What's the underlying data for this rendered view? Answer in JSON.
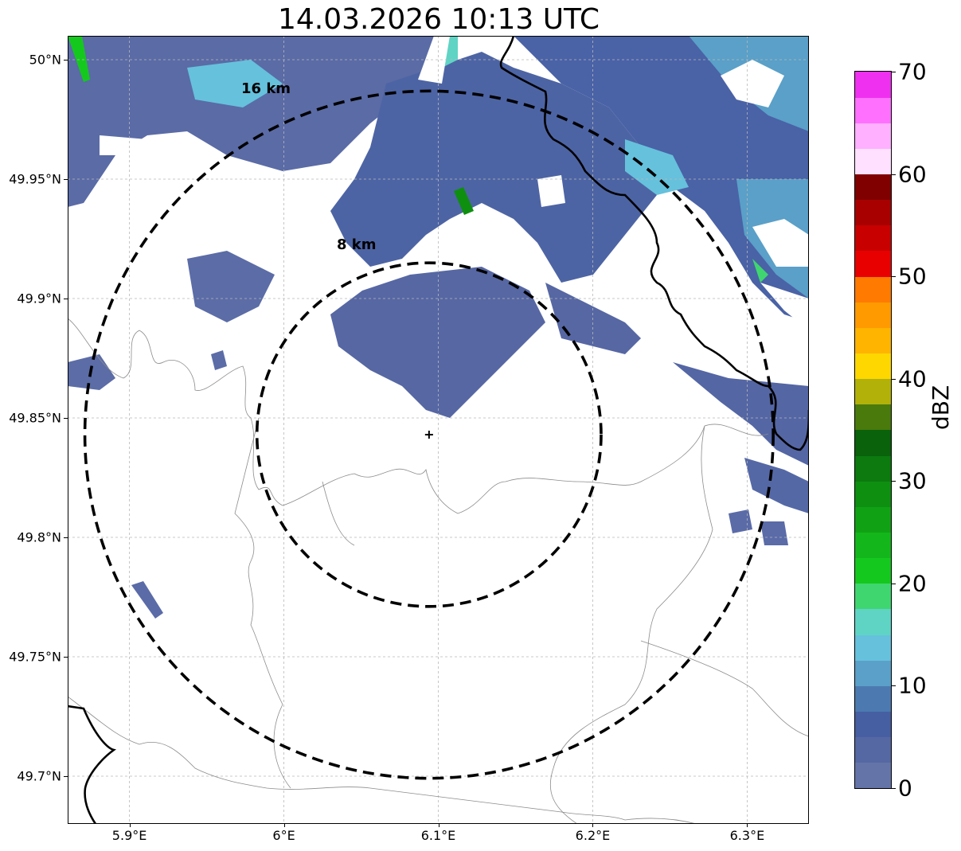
{
  "title": "14.03.2026 10:13 UTC",
  "map": {
    "lat_range": [
      49.68,
      50.01
    ],
    "lon_range": [
      5.86,
      6.34
    ],
    "radar_site": {
      "lat": 49.843,
      "lon": 6.094
    },
    "lat_ticks": [
      "50°N",
      "49.95°N",
      "49.9°N",
      "49.85°N",
      "49.8°N",
      "49.75°N",
      "49.7°N"
    ],
    "lat_tick_values": [
      50.0,
      49.95,
      49.9,
      49.85,
      49.8,
      49.75,
      49.7
    ],
    "lon_ticks": [
      "5.9°E",
      "6°E",
      "6.1°E",
      "6.2°E",
      "6.3°E"
    ],
    "lon_tick_values": [
      5.9,
      6.0,
      6.1,
      6.2,
      6.3
    ],
    "rings": [
      {
        "label": "8 km",
        "radius_km": 8
      },
      {
        "label": "16 km",
        "radius_km": 16
      }
    ]
  },
  "colorbar": {
    "label": "dBZ",
    "min": 0,
    "max": 70,
    "tick_labels": [
      "0",
      "10",
      "20",
      "30",
      "40",
      "50",
      "60",
      "70"
    ],
    "colors": [
      "#6574a8",
      "#5668a3",
      "#465ea2",
      "#4c7ab0",
      "#5aa0c8",
      "#66c1dc",
      "#5fd4c4",
      "#3fd670",
      "#15c81e",
      "#13b71b",
      "#10a214",
      "#0e8f10",
      "#0c7a0e",
      "#0a620b",
      "#4a7a0c",
      "#b1b10a",
      "#ffd700",
      "#ffb400",
      "#ff9a00",
      "#ff7a00",
      "#e80000",
      "#c80000",
      "#a80000",
      "#800000",
      "#ffe0ff",
      "#ffb0ff",
      "#ff70ff",
      "#f030f0"
    ]
  }
}
